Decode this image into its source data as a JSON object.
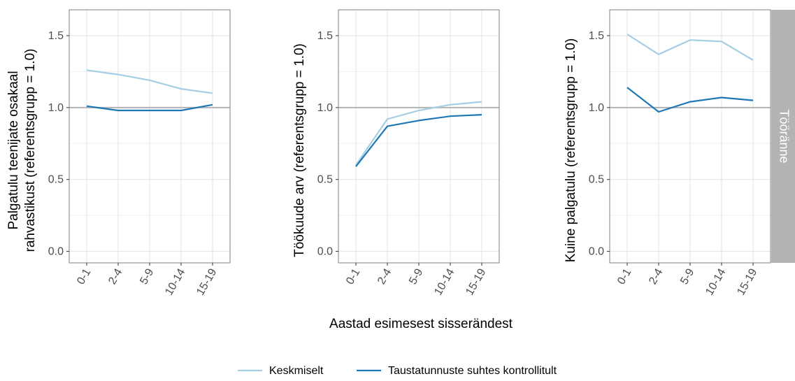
{
  "chart_data": {
    "type": "line",
    "x_title": "Aastad esimesest sisserändest",
    "categories": [
      "0-1",
      "2-4",
      "5-9",
      "10-14",
      "15-19"
    ],
    "ylim": [
      -0.08,
      1.68
    ],
    "yticks": [
      0.0,
      0.5,
      1.0,
      1.5
    ],
    "ytick_labels": [
      "0.0",
      "0.5",
      "1.0",
      "1.5"
    ],
    "reference_line": 1.0,
    "grid": true,
    "strip_label": "Tööränne",
    "legend": {
      "position": "bottom",
      "entries": [
        "Keskmiselt",
        "Taustatunnuste suhtes kontrollitult"
      ]
    },
    "series_colors": {
      "Keskmiselt": "#a6cee3",
      "Taustatunnuste suhtes kontrollitult": "#1f78b4"
    },
    "reference_line_color": "#b3b3b3",
    "strip_color": "#b3b3b3",
    "panels": [
      {
        "ylabel": [
          "Palgatulu teenijate osakaal",
          "rahvastikust (referentsgrupp = 1.0)"
        ],
        "series": [
          {
            "name": "Keskmiselt",
            "values": [
              1.26,
              1.23,
              1.19,
              1.13,
              1.1
            ]
          },
          {
            "name": "Taustatunnuste suhtes kontrollitult",
            "values": [
              1.01,
              0.98,
              0.98,
              0.98,
              1.02
            ]
          }
        ]
      },
      {
        "ylabel": [
          "Töökuude arv (referentsgrupp = 1.0)"
        ],
        "series": [
          {
            "name": "Keskmiselt",
            "values": [
              0.6,
              0.92,
              0.98,
              1.02,
              1.04
            ]
          },
          {
            "name": "Taustatunnuste suhtes kontrollitult",
            "values": [
              0.59,
              0.87,
              0.91,
              0.94,
              0.95
            ]
          }
        ]
      },
      {
        "ylabel": [
          "Kuine palgatulu (referentsgrupp = 1.0)"
        ],
        "series": [
          {
            "name": "Keskmiselt",
            "values": [
              1.51,
              1.37,
              1.47,
              1.46,
              1.33
            ]
          },
          {
            "name": "Taustatunnuste suhtes kontrollitult",
            "values": [
              1.14,
              0.97,
              1.04,
              1.07,
              1.05
            ]
          }
        ]
      }
    ]
  }
}
